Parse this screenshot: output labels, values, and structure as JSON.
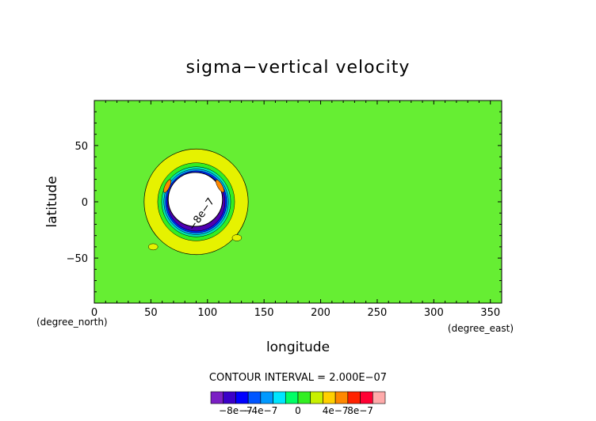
{
  "chart_data": {
    "type": "contour",
    "title": "sigma−vertical velocity",
    "xlabel": "longitude",
    "ylabel": "latitude",
    "xunit": "(degree_east)",
    "yunit": "(degree_north)",
    "xlim": [
      0,
      360
    ],
    "ylim": [
      -90,
      90
    ],
    "xticks": [
      0,
      50,
      100,
      150,
      200,
      250,
      300,
      350
    ],
    "yticks": [
      50,
      0,
      -50
    ],
    "interval_text": "CONTOUR INTERVAL = 2.000E−07",
    "contour_label": "−8e−7",
    "field": {
      "center_lon": 90,
      "center_lat": 0,
      "background": "0",
      "rings": [
        {
          "radius_deg": 46,
          "level": "4e-7",
          "color": "#e6f200"
        },
        {
          "radius_deg": 34,
          "level": "0",
          "color": "#33ee22"
        },
        {
          "radius_deg": 30.5,
          "level": "-2e-7",
          "color": "#00e8b0"
        },
        {
          "radius_deg": 28.5,
          "level": "-4e-7",
          "color": "#00a8ff"
        },
        {
          "radius_deg": 27,
          "level": "-6e-7",
          "color": "#0022ff"
        },
        {
          "radius_deg": 25.5,
          "level": "-8e-7",
          "color": "#5000b0"
        }
      ],
      "core_color": "#ffffff"
    },
    "colorbar": {
      "colors": [
        "#7b1fc4",
        "#3a00c8",
        "#0000ff",
        "#0055ff",
        "#0099ff",
        "#00e5ff",
        "#00ff66",
        "#33ee22",
        "#c8f000",
        "#ffd000",
        "#ff8800",
        "#ff2200",
        "#ff0033",
        "#ffaaaa"
      ],
      "tick_labels": [
        "−8e−7",
        "−4e−7",
        "0",
        "4e−7",
        "8e−7"
      ]
    },
    "field_color": "#66ee33",
    "grid": false
  }
}
